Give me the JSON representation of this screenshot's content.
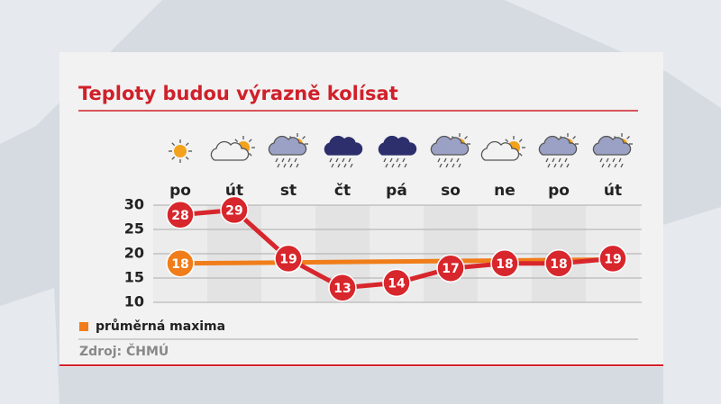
{
  "chart_data": {
    "type": "line",
    "title": "Teploty budou výrazně kolísat",
    "categories": [
      "po",
      "út",
      "st",
      "čt",
      "pá",
      "so",
      "ne",
      "po",
      "út"
    ],
    "series": [
      {
        "name": "průměrná maxima",
        "color": "#f07d1a",
        "values": [
          18,
          18.1,
          18.2,
          18.3,
          18.4,
          18.5,
          18.6,
          18.7,
          18.8
        ],
        "value_labels": [
          "18",
          null,
          null,
          null,
          null,
          null,
          null,
          null,
          null
        ]
      },
      {
        "color": "#d7262c",
        "values": [
          28,
          29,
          19,
          13,
          14,
          17,
          18,
          18,
          19
        ]
      }
    ],
    "ylim": [
      10,
      30
    ],
    "yticks": [
      10,
      15,
      20,
      25,
      30
    ],
    "grid": true,
    "source": "Zdroj: ČHMÚ"
  }
}
